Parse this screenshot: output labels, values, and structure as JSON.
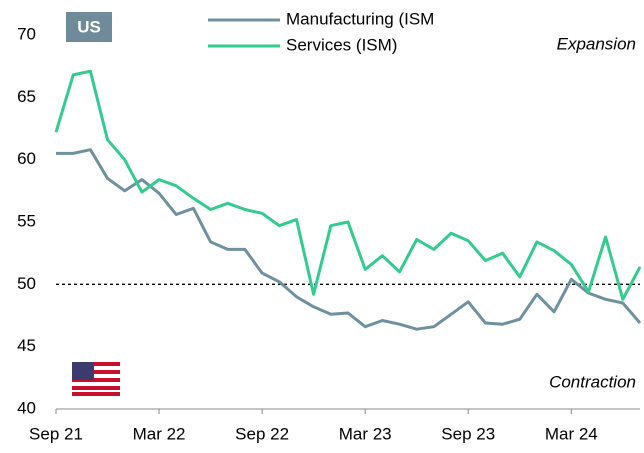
{
  "chart_data": {
    "type": "line",
    "badge": "US",
    "annotations": [
      "Expansion",
      "Contraction"
    ],
    "categories": [
      "Sep 21",
      null,
      null,
      null,
      null,
      null,
      "Mar 22",
      null,
      null,
      null,
      null,
      null,
      "Sep 22",
      null,
      null,
      null,
      null,
      null,
      "Mar 23",
      null,
      null,
      null,
      null,
      null,
      "Sep 23",
      null,
      null,
      null,
      null,
      null,
      "Mar 24",
      null,
      null,
      null,
      null
    ],
    "series": [
      {
        "name": "Manufacturing (ISM",
        "color": "#6f919f",
        "values": [
          60.5,
          60.5,
          60.8,
          58.5,
          57.5,
          58.4,
          57.3,
          55.6,
          56.1,
          53.4,
          52.8,
          52.8,
          50.9,
          50.2,
          49.0,
          48.2,
          47.6,
          47.7,
          46.6,
          47.1,
          46.8,
          46.4,
          46.6,
          47.6,
          48.6,
          46.9,
          46.8,
          47.2,
          49.2,
          47.8,
          50.4,
          49.3,
          48.8,
          48.5,
          46.9
        ]
      },
      {
        "name": "Services (ISM)",
        "color": "#33cc8f",
        "values": [
          62.2,
          66.8,
          67.1,
          61.6,
          60.0,
          57.4,
          58.4,
          57.9,
          56.9,
          56.0,
          56.5,
          56.0,
          55.7,
          54.7,
          55.2,
          49.2,
          54.7,
          55.0,
          51.2,
          52.3,
          51.0,
          53.6,
          52.8,
          54.1,
          53.5,
          51.9,
          52.5,
          50.6,
          53.4,
          52.7,
          51.6,
          49.4,
          53.8,
          48.8,
          51.4
        ]
      }
    ],
    "reference_line": 50,
    "ylim": [
      40,
      70
    ],
    "yticks": [
      40,
      45,
      50,
      55,
      60,
      65,
      70
    ]
  }
}
